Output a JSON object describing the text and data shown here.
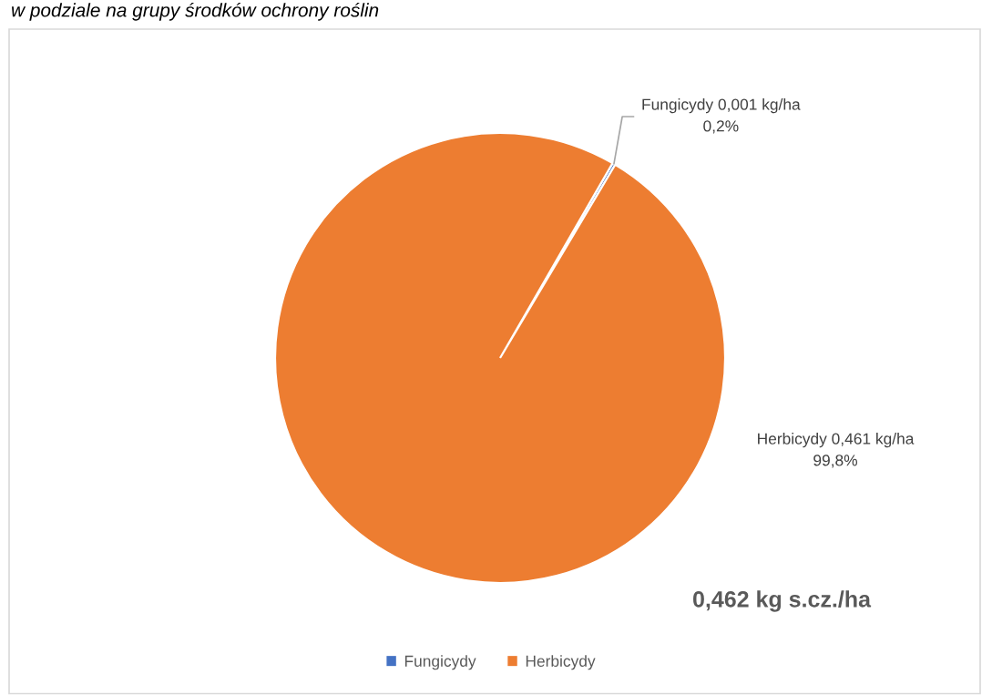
{
  "chart_data": {
    "type": "pie",
    "title": "w podziale na grupy środków ochrony roślin",
    "categories": [
      "Fungicydy",
      "Herbicydy"
    ],
    "values": [
      0.001,
      0.461
    ],
    "colors": [
      "#4472c4",
      "#ed7d31"
    ],
    "value_labels": [
      "Fungicydy 0,001 kg/ha\n0,2%",
      "Herbicydy 0,461 kg/ha\n99,8%"
    ],
    "annotations": [
      "0,462 kg s.cz./ha"
    ],
    "legend": "bottom"
  }
}
